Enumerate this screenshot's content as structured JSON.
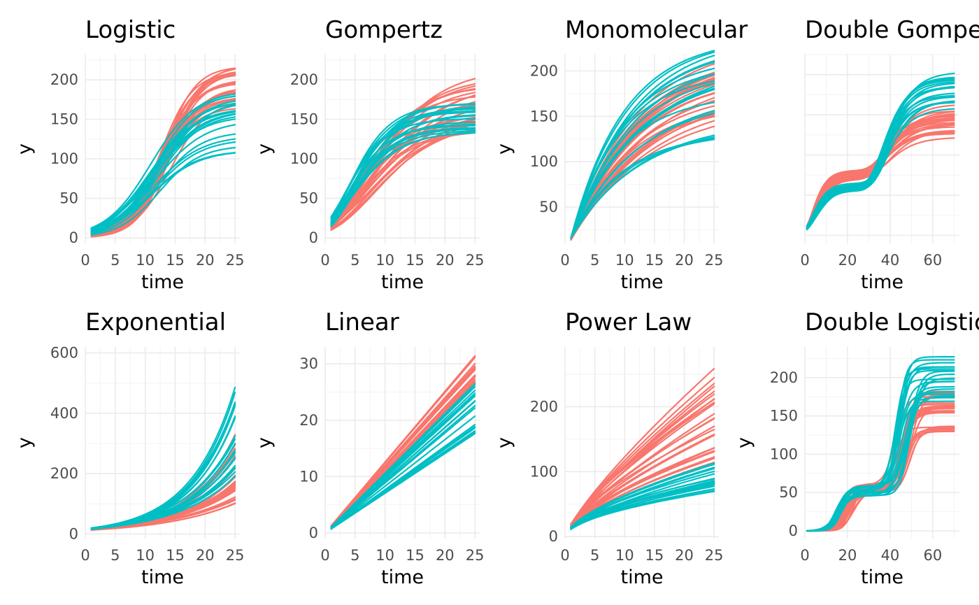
{
  "colors": {
    "group1": "#F8766D",
    "group2": "#00BFC4"
  },
  "chart_data": [
    {
      "type": "line",
      "title": "Logistic",
      "xlabel": "time",
      "ylabel": "y",
      "xlim": [
        0,
        25.8
      ],
      "ylim": [
        -7,
        232
      ],
      "xticks": [
        0,
        5,
        10,
        15,
        20,
        25
      ],
      "yticks": [
        0,
        50,
        100,
        150,
        200
      ],
      "grid": true,
      "model": "logistic",
      "x_range": [
        1,
        25
      ],
      "series": [
        {
          "color": "#F8766D",
          "count": 25,
          "asym": [
            165,
            220
          ],
          "mid": [
            12,
            14.5
          ],
          "scale": [
            2.6,
            3.3
          ]
        },
        {
          "color": "#00BFC4",
          "count": 20,
          "asym": [
            110,
            190
          ],
          "mid": [
            10.5,
            12.5
          ],
          "scale": [
            3.3,
            4.2
          ]
        }
      ]
    },
    {
      "type": "line",
      "title": "Gompertz",
      "xlabel": "time",
      "ylabel": "y",
      "xlim": [
        0,
        25.8
      ],
      "ylim": [
        -7,
        232
      ],
      "xticks": [
        0,
        5,
        10,
        15,
        20,
        25
      ],
      "yticks": [
        0,
        50,
        100,
        150,
        200
      ],
      "grid": true,
      "model": "gompertz",
      "x_range": [
        1,
        25
      ],
      "series": [
        {
          "color": "#F8766D",
          "count": 25,
          "asym": [
            125,
            222
          ],
          "b": [
            2.6,
            3.2
          ],
          "c": [
            0.12,
            0.2
          ]
        },
        {
          "color": "#00BFC4",
          "count": 20,
          "asym": [
            125,
            172
          ],
          "b": [
            2.3,
            2.9
          ],
          "c": [
            0.2,
            0.26
          ]
        }
      ]
    },
    {
      "type": "line",
      "title": "Monomolecular",
      "xlabel": "time",
      "ylabel": "y",
      "xlim": [
        0,
        25.8
      ],
      "ylim": [
        10,
        218
      ],
      "xticks": [
        0,
        5,
        10,
        15,
        20,
        25
      ],
      "yticks": [
        50,
        100,
        150,
        200
      ],
      "grid": true,
      "model": "monomolecular",
      "x_range": [
        1,
        25
      ],
      "series": [
        {
          "color": "#F8766D",
          "count": 25,
          "asym": [
            160,
            235
          ],
          "rate": [
            0.07,
            0.1
          ],
          "y0": 14
        },
        {
          "color": "#00BFC4",
          "count": 20,
          "asym": [
            130,
            240
          ],
          "rate": [
            0.08,
            0.12
          ],
          "y0": 16
        }
      ]
    },
    {
      "type": "line",
      "title": "Double Gompertz",
      "xlabel": "time",
      "ylabel": "",
      "xlim": [
        0,
        72.5
      ],
      "ylim": [
        -10,
        225
      ],
      "xticks": [
        0,
        20,
        40,
        60
      ],
      "yticks": [],
      "ytick_positions": [
        0,
        50,
        100,
        150,
        200
      ],
      "grid": true,
      "model": "double-gompertz",
      "x_range": [
        1,
        70
      ],
      "series": [
        {
          "color": "#F8766D",
          "count": 25,
          "a1": [
            70,
            82
          ],
          "b1": [
            2.4,
            2.8
          ],
          "c1": [
            0.2,
            0.26
          ],
          "a2": [
            50,
            85
          ],
          "b2": [
            5.0,
            6.0
          ],
          "c2": [
            0.12,
            0.15
          ]
        },
        {
          "color": "#00BFC4",
          "count": 20,
          "a1": [
            56,
            66
          ],
          "b1": [
            2.2,
            2.6
          ],
          "c1": [
            0.18,
            0.24
          ],
          "a2": [
            95,
            140
          ],
          "b2": [
            5.5,
            7.0
          ],
          "c2": [
            0.13,
            0.16
          ]
        }
      ]
    },
    {
      "type": "line",
      "title": "Exponential",
      "xlabel": "time",
      "ylabel": "y",
      "xlim": [
        0,
        25.8
      ],
      "ylim": [
        -15,
        620
      ],
      "xticks": [
        0,
        5,
        10,
        15,
        20,
        25
      ],
      "yticks": [
        0,
        200,
        400,
        600
      ],
      "grid": true,
      "model": "exponential",
      "x_range": [
        1,
        25
      ],
      "series": [
        {
          "color": "#F8766D",
          "count": 25,
          "a": [
            13,
            17
          ],
          "rate": [
            0.078,
            0.13
          ]
        },
        {
          "color": "#00BFC4",
          "count": 20,
          "a": [
            16,
            20
          ],
          "rate": [
            0.1,
            0.14
          ]
        }
      ]
    },
    {
      "type": "line",
      "title": "Linear",
      "xlabel": "time",
      "ylabel": "y",
      "xlim": [
        0,
        25.8
      ],
      "ylim": [
        -1,
        33
      ],
      "xticks": [
        0,
        5,
        10,
        15,
        20,
        25
      ],
      "yticks": [
        0,
        10,
        20,
        30
      ],
      "grid": true,
      "model": "linear",
      "x_range": [
        1,
        25
      ],
      "series": [
        {
          "color": "#F8766D",
          "count": 25,
          "slope": [
            1.05,
            1.27
          ],
          "intercept": 0
        },
        {
          "color": "#00BFC4",
          "count": 20,
          "slope": [
            0.7,
            1.1
          ],
          "intercept": 0
        }
      ]
    },
    {
      "type": "line",
      "title": "Power Law",
      "xlabel": "time",
      "ylabel": "y",
      "xlim": [
        0,
        25.8
      ],
      "ylim": [
        -3,
        292
      ],
      "xticks": [
        0,
        5,
        10,
        15,
        20,
        25
      ],
      "yticks": [
        0,
        100,
        200
      ],
      "grid": true,
      "model": "power-law",
      "x_range": [
        1,
        25
      ],
      "series": [
        {
          "color": "#F8766D",
          "count": 25,
          "a": [
            14,
            20
          ],
          "exponent": [
            0.65,
            0.83
          ]
        },
        {
          "color": "#00BFC4",
          "count": 20,
          "a": [
            11,
            15
          ],
          "exponent": [
            0.53,
            0.65
          ]
        }
      ]
    },
    {
      "type": "line",
      "title": "Double Logistic",
      "xlabel": "time",
      "ylabel": "y",
      "xlim": [
        0,
        72.5
      ],
      "ylim": [
        -10,
        240
      ],
      "xticks": [
        0,
        20,
        40,
        60
      ],
      "yticks": [
        0,
        50,
        100,
        150,
        200
      ],
      "grid": true,
      "model": "double-logistic",
      "x_range": [
        1,
        70
      ],
      "series": [
        {
          "color": "#F8766D",
          "count": 25,
          "a1": [
            50,
            62
          ],
          "m1": [
            17,
            23
          ],
          "s1": [
            2,
            3
          ],
          "a2": [
            75,
            125
          ],
          "m2": [
            42,
            50
          ],
          "s2": [
            2,
            3
          ]
        },
        {
          "color": "#00BFC4",
          "count": 20,
          "a1": [
            45,
            60
          ],
          "m1": [
            14,
            18
          ],
          "s1": [
            2,
            3
          ],
          "a2": [
            110,
            175
          ],
          "m2": [
            40,
            50
          ],
          "s2": [
            2,
            3
          ]
        }
      ]
    }
  ]
}
